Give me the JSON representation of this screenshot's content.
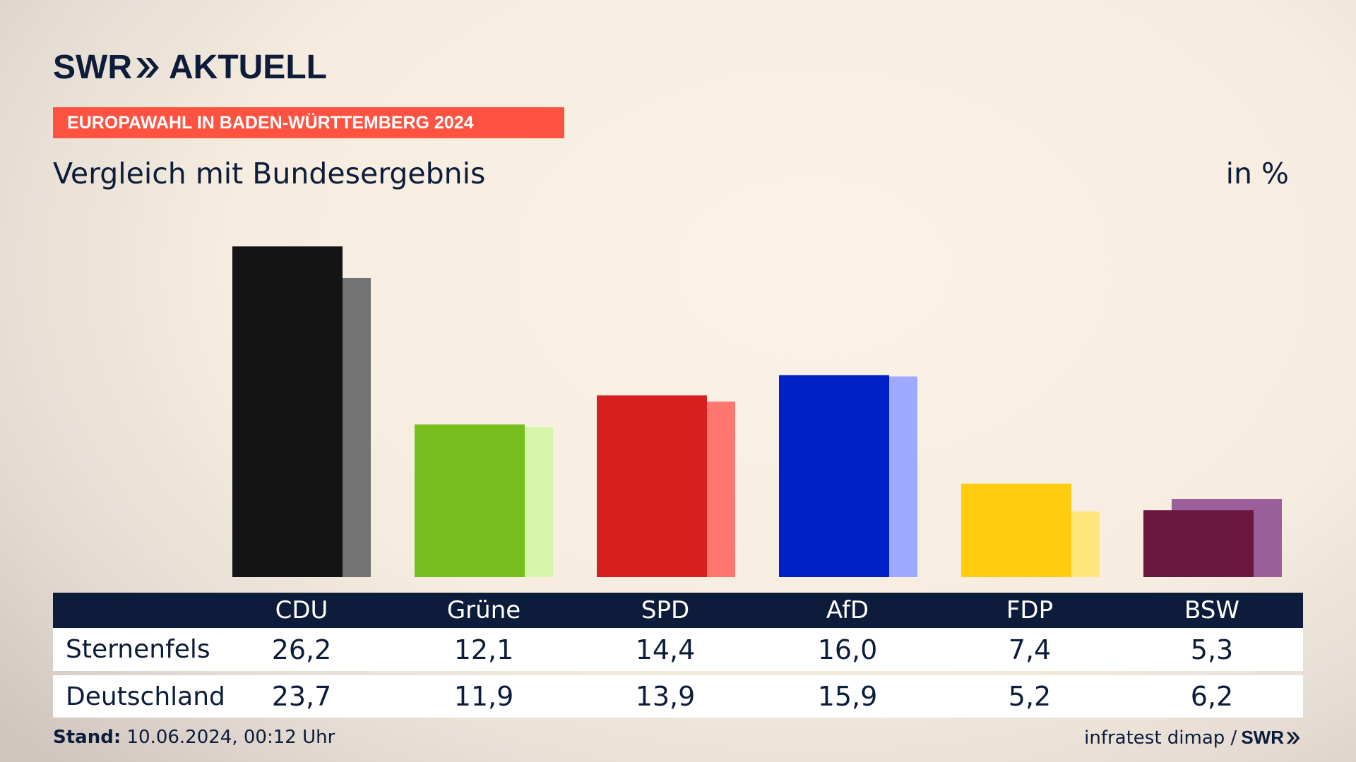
{
  "header": {
    "logo_text": "SWR",
    "logo_suffix": "AKTUELL",
    "banner": "EUROPAWAHL IN BADEN-WÜRTTEMBERG 2024",
    "subtitle": "Vergleich mit Bundesergebnis",
    "unit": "in %"
  },
  "table": {
    "parties": [
      "CDU",
      "Grüne",
      "SPD",
      "AfD",
      "FDP",
      "BSW"
    ],
    "rows": [
      {
        "label": "Sternenfels",
        "values": [
          "26,2",
          "12,1",
          "14,4",
          "16,0",
          "7,4",
          "5,3"
        ]
      },
      {
        "label": "Deutschland",
        "values": [
          "23,7",
          "11,9",
          "13,9",
          "15,9",
          "5,2",
          "6,2"
        ]
      }
    ]
  },
  "chart_data": {
    "type": "bar",
    "categories": [
      "CDU",
      "Grüne",
      "SPD",
      "AfD",
      "FDP",
      "BSW"
    ],
    "series": [
      {
        "name": "Sternenfels",
        "values": [
          26.2,
          12.1,
          14.4,
          16.0,
          7.4,
          5.3
        ],
        "colors": [
          "#141414",
          "#78be1e",
          "#d71f1f",
          "#0020c8",
          "#ffcc0f",
          "#6b1840"
        ]
      },
      {
        "name": "Deutschland",
        "values": [
          23.7,
          11.9,
          13.9,
          15.9,
          5.2,
          6.2
        ],
        "colors": [
          "#737373",
          "#d6f5aa",
          "#ff7570",
          "#9daaff",
          "#ffe57a",
          "#9b6099"
        ]
      }
    ],
    "ylim": [
      0,
      27.5
    ],
    "grid": false
  },
  "footer": {
    "stand_label": "Stand:",
    "stand_value": "10.06.2024, 00:12 Uhr",
    "source": "infratest dimap /",
    "source_brand": "SWR"
  }
}
